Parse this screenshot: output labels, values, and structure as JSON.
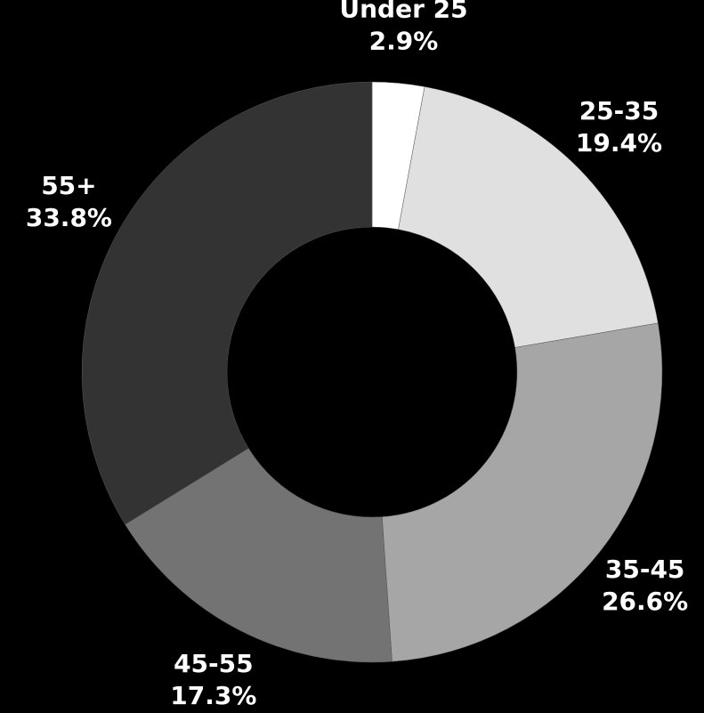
{
  "chart_data": {
    "type": "donut",
    "categories": [
      "Under 25",
      "25-35",
      "35-45",
      "45-55",
      "55+"
    ],
    "values": [
      2.9,
      19.4,
      26.6,
      17.3,
      33.8
    ],
    "value_labels": [
      "2.9%",
      "19.4%",
      "26.6%",
      "17.3%",
      "33.8%"
    ],
    "colors": [
      "#ffffff",
      "#e0e0e0",
      "#a6a6a6",
      "#737373",
      "#333333"
    ]
  }
}
